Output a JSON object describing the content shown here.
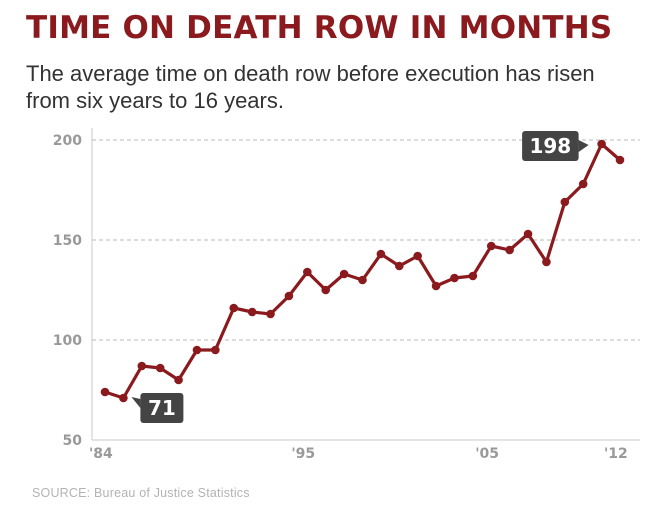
{
  "header": {
    "title": "TIME ON DEATH ROW IN MONTHS",
    "subtitle": "The average time on death row before execution has risen from six years to 16 years."
  },
  "footer": {
    "source": "SOURCE: Bureau of Justice Statistics"
  },
  "colors": {
    "title": "#8b1a1e",
    "line": "#8b1a1e",
    "callout": "#444444",
    "grid": "#c8c8c8",
    "tick": "#999999"
  },
  "chart_data": {
    "type": "line",
    "title": "TIME ON DEATH ROW IN MONTHS",
    "xlabel": "",
    "ylabel": "",
    "x": [
      1984,
      1985,
      1986,
      1987,
      1988,
      1989,
      1990,
      1991,
      1992,
      1993,
      1994,
      1995,
      1996,
      1997,
      1998,
      1999,
      2000,
      2001,
      2002,
      2003,
      2004,
      2005,
      2006,
      2007,
      2008,
      2009,
      2010,
      2011,
      2012
    ],
    "values": [
      74,
      71,
      87,
      86,
      80,
      95,
      95,
      116,
      114,
      113,
      122,
      134,
      125,
      133,
      130,
      143,
      137,
      142,
      127,
      131,
      132,
      147,
      145,
      153,
      139,
      169,
      178,
      198,
      190
    ],
    "xlim": [
      1984,
      2012
    ],
    "ylim": [
      50,
      200
    ],
    "yticks": [
      50,
      100,
      150,
      200
    ],
    "xtick_values": [
      1984,
      1995,
      2005,
      2012
    ],
    "xtick_labels": [
      "'84",
      "'95",
      "'05",
      "'12"
    ],
    "grid": "horizontal dashed",
    "legend": "none",
    "annotations": [
      {
        "x": 1985,
        "y": 71,
        "label": "71"
      },
      {
        "x": 2011,
        "y": 198,
        "label": "198"
      }
    ]
  }
}
